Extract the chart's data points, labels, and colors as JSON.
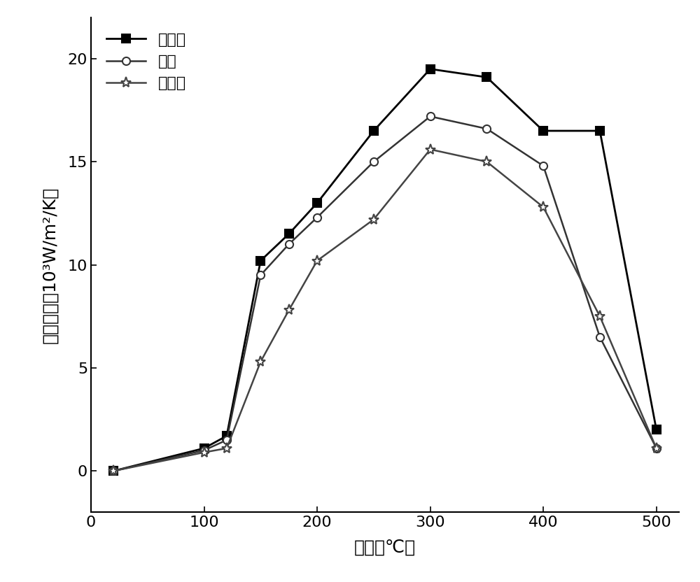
{
  "title": "",
  "xlabel": "温度（℃）",
  "ylabel": "换热系数（10³W/m²/K）",
  "series": [
    {
      "name": "上表面",
      "color": "#000000",
      "marker": "s",
      "markersize": 8,
      "linewidth": 2.0,
      "markerfacecolor": "#000000",
      "markeredgecolor": "#000000",
      "x": [
        20,
        100,
        120,
        150,
        175,
        200,
        250,
        300,
        350,
        400,
        450,
        500
      ],
      "y": [
        0.0,
        1.1,
        1.7,
        10.2,
        11.5,
        13.0,
        16.5,
        19.5,
        19.1,
        16.5,
        16.5,
        2.0
      ]
    },
    {
      "name": "侧面",
      "color": "#333333",
      "marker": "o",
      "markersize": 8,
      "linewidth": 1.8,
      "markerfacecolor": "white",
      "markeredgecolor": "#333333",
      "x": [
        20,
        100,
        120,
        150,
        175,
        200,
        250,
        300,
        350,
        400,
        450,
        500
      ],
      "y": [
        0.0,
        1.0,
        1.5,
        9.5,
        11.0,
        12.3,
        15.0,
        17.2,
        16.6,
        14.8,
        6.5,
        1.1
      ]
    },
    {
      "name": "下表面",
      "color": "#444444",
      "marker": "*",
      "markersize": 11,
      "linewidth": 1.8,
      "markerfacecolor": "white",
      "markeredgecolor": "#444444",
      "x": [
        20,
        100,
        120,
        150,
        175,
        200,
        250,
        300,
        350,
        400,
        450,
        500
      ],
      "y": [
        0.0,
        0.9,
        1.1,
        5.3,
        7.8,
        10.2,
        12.2,
        15.6,
        15.0,
        12.8,
        7.5,
        1.1
      ]
    }
  ],
  "xlim": [
    0,
    520
  ],
  "ylim": [
    -2,
    22
  ],
  "xticks": [
    0,
    100,
    200,
    300,
    400,
    500
  ],
  "yticks": [
    0,
    5,
    10,
    15,
    20
  ],
  "grid": false,
  "legend_loc": "upper left",
  "legend_fontsize": 16,
  "axis_fontsize": 18,
  "tick_fontsize": 16,
  "background_color": "#ffffff"
}
